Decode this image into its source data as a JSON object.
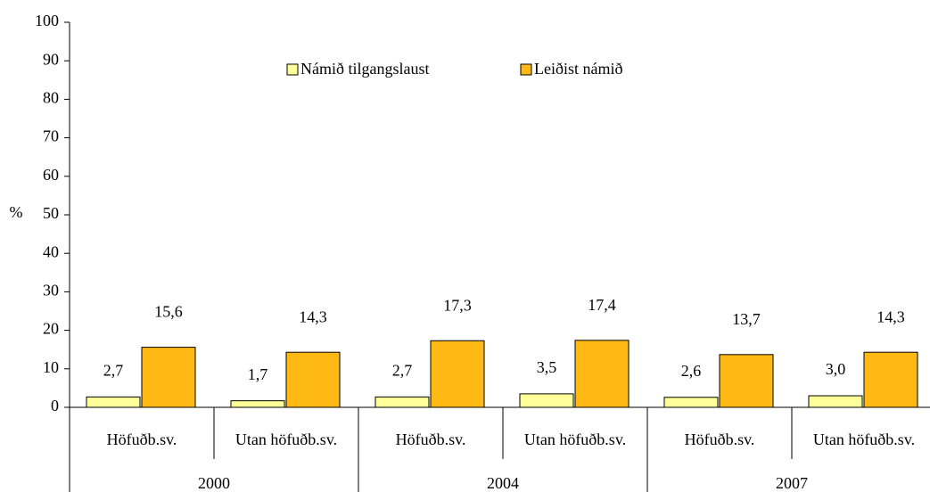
{
  "chart_data": {
    "type": "bar",
    "y_label": "%",
    "categories": [
      "Höfuðb.sv.",
      "Utan höfuðb.sv.",
      "Höfuðb.sv.",
      "Utan höfuðb.sv.",
      "Höfuðb.sv.",
      "Utan höfuðb.sv."
    ],
    "group_labels": [
      "2000",
      "2004",
      "2007"
    ],
    "series": [
      {
        "name": "Námið tilgangslaust",
        "color": "#ffff99",
        "values": [
          2.7,
          1.7,
          2.7,
          3.5,
          2.6,
          3.0
        ],
        "value_labels": [
          "2,7",
          "1,7",
          "2,7",
          "3,5",
          "2,6",
          "3,0"
        ]
      },
      {
        "name": "Leiðist námið",
        "color": "#ffb914",
        "values": [
          15.6,
          14.3,
          17.3,
          17.4,
          13.7,
          14.3
        ],
        "value_labels": [
          "15,6",
          "14,3",
          "17,3",
          "17,4",
          "13,7",
          "14,3"
        ]
      }
    ],
    "ylim": [
      0,
      100
    ],
    "yticks": [
      0,
      10,
      20,
      30,
      40,
      50,
      60,
      70,
      80,
      90,
      100
    ],
    "legend": "top"
  }
}
